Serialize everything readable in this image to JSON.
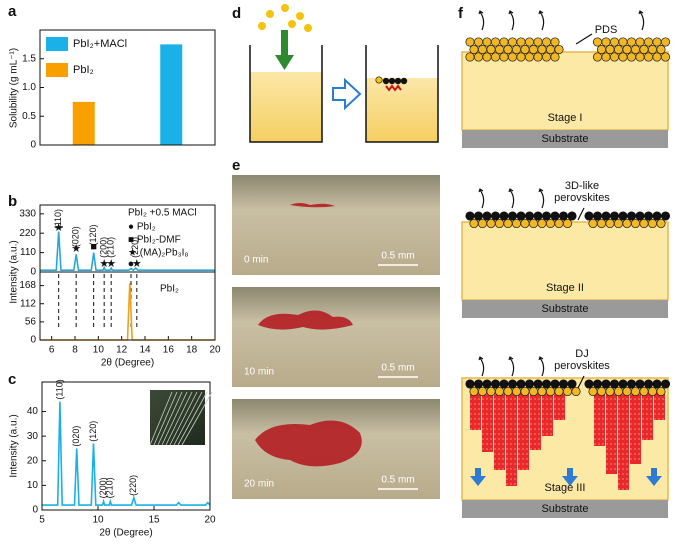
{
  "chart_data": [
    {
      "type": "bar",
      "panel_label": "a",
      "ylabel": "Solubility (g mL⁻¹)",
      "categories": [
        null,
        null
      ],
      "series": [
        {
          "name": "PbI₂+MACl",
          "color": "#1ab0e8",
          "values": [
            null,
            1.75
          ]
        },
        {
          "name": "PbI₂",
          "color": "#f7a000",
          "values": [
            0.75,
            null
          ]
        }
      ],
      "ylim": [
        0,
        2
      ],
      "yticks": [
        0,
        0.5,
        {
          "value": 1,
          "label": "1.0"
        },
        1.5
      ]
    },
    {
      "type": "line",
      "panel_label": "b",
      "ylabel": "Intensity (a.u.)",
      "x": [
        5,
        6.4,
        6.6,
        6.8,
        7.9,
        8.1,
        8.3,
        9.4,
        9.6,
        9.8,
        10.4,
        10.5,
        10.6,
        11.0,
        11.1,
        11.2,
        12.6,
        12.8,
        13.0,
        13.2,
        13.4,
        20
      ],
      "series": [
        {
          "name": "PbI₂ +0.5 MACl",
          "color": "#2aa6dc",
          "values": [
            10,
            10,
            230,
            10,
            10,
            100,
            10,
            10,
            110,
            10,
            10,
            25,
            10,
            10,
            22,
            10,
            10,
            20,
            10,
            22,
            10,
            10
          ]
        }
      ],
      "symbol_key": [
        "● PbI₂",
        "■ PbI₂-DMF",
        "★ (MA)₂Pb₃I₈"
      ],
      "peak_labels": [
        {
          "text": "(110)",
          "x": 6.6,
          "y": 300
        },
        {
          "text": "(020)",
          "x": 8.1,
          "y": 200
        },
        {
          "text": "(120)",
          "x": 9.6,
          "y": 210
        },
        {
          "text": "(200)",
          "x": 10.5,
          "y": 140
        },
        {
          "text": "(210)",
          "x": 11.1,
          "y": 140
        },
        {
          "text": "(220)",
          "x": 13.2,
          "y": 140
        }
      ],
      "markers": [
        {
          "text": "★",
          "x": 6.6,
          "y": 250
        },
        {
          "text": "★",
          "x": 8.1,
          "y": 130
        },
        {
          "text": "■",
          "x": 9.6,
          "y": 140
        },
        {
          "text": "★",
          "x": 10.5,
          "y": 45
        },
        {
          "text": "★",
          "x": 11.1,
          "y": 45
        },
        {
          "text": "●",
          "x": 12.8,
          "y": 45
        },
        {
          "text": "★",
          "x": 13.3,
          "y": 45
        }
      ],
      "xlim": [
        5,
        20
      ],
      "ylim": [
        0,
        380
      ],
      "yticks": [
        0,
        110,
        220,
        330
      ]
    },
    {
      "type": "line",
      "xlabel": "2θ (Degree)",
      "x": [
        5,
        12.5,
        12.7,
        12.9,
        20
      ],
      "series": [
        {
          "name": "PbI₂",
          "color": "#f0a020",
          "values": [
            0,
            0,
            175,
            0,
            0
          ]
        }
      ],
      "reference_lines": [
        6.6,
        8.1,
        9.6,
        10.5,
        11.1,
        12.8,
        13.3
      ],
      "xlim": [
        5,
        20
      ],
      "xticks": [
        6,
        8,
        10,
        12,
        14,
        16,
        18,
        20
      ],
      "ylim": [
        0,
        210
      ],
      "yticks": [
        0,
        56,
        112,
        168
      ]
    },
    {
      "type": "line",
      "panel_label": "c",
      "ylabel": "Intensity (a.u.)",
      "xlabel": "2θ (Degree)",
      "x": [
        5,
        6.4,
        6.6,
        6.8,
        7.9,
        8.1,
        8.3,
        9.4,
        9.6,
        9.8,
        10.4,
        10.5,
        10.6,
        11.0,
        11.1,
        11.2,
        13.0,
        13.2,
        13.4,
        17,
        17.2,
        17.4,
        19.6,
        19.8,
        20
      ],
      "series": [
        {
          "name": null,
          "color": "#1ab0e8",
          "values": [
            2,
            2,
            44,
            2,
            2,
            25,
            2,
            2,
            27,
            2,
            2,
            3.5,
            2,
            2,
            3.5,
            2,
            2,
            5,
            2,
            2,
            3,
            2,
            2,
            3,
            2
          ]
        }
      ],
      "peak_labels": [
        {
          "text": "(110)",
          "x": 6.6,
          "y": 49
        },
        {
          "text": "(020)",
          "x": 8.1,
          "y": 30
        },
        {
          "text": "(120)",
          "x": 9.6,
          "y": 32
        },
        {
          "text": "(200)",
          "x": 10.5,
          "y": 9
        },
        {
          "text": "(210)",
          "x": 11.1,
          "y": 9
        },
        {
          "text": "(220)",
          "x": 13.2,
          "y": 10
        }
      ],
      "xlim": [
        5,
        20
      ],
      "xticks": [
        5,
        10,
        15,
        20
      ],
      "ylim": [
        0,
        52
      ],
      "yticks": [
        0,
        10,
        20,
        30,
        40
      ]
    }
  ],
  "panel_d": {
    "label": "d"
  },
  "panel_e": {
    "label": "e",
    "photos": [
      {
        "time": "0 min",
        "scale": "0.5 mm"
      },
      {
        "time": "10 min",
        "scale": "0.5 mm"
      },
      {
        "time": "20 min",
        "scale": "0.5 mm"
      }
    ]
  },
  "panel_f": {
    "label": "f",
    "substrate": "Substrate",
    "stages": [
      {
        "annotation": [
          "PDS"
        ],
        "name": "Stage I"
      },
      {
        "annotation": [
          "3D-like",
          "perovskites"
        ],
        "name": "Stage II"
      },
      {
        "annotation": [
          "DJ",
          "perovskites"
        ],
        "name": "Stage III"
      }
    ]
  }
}
